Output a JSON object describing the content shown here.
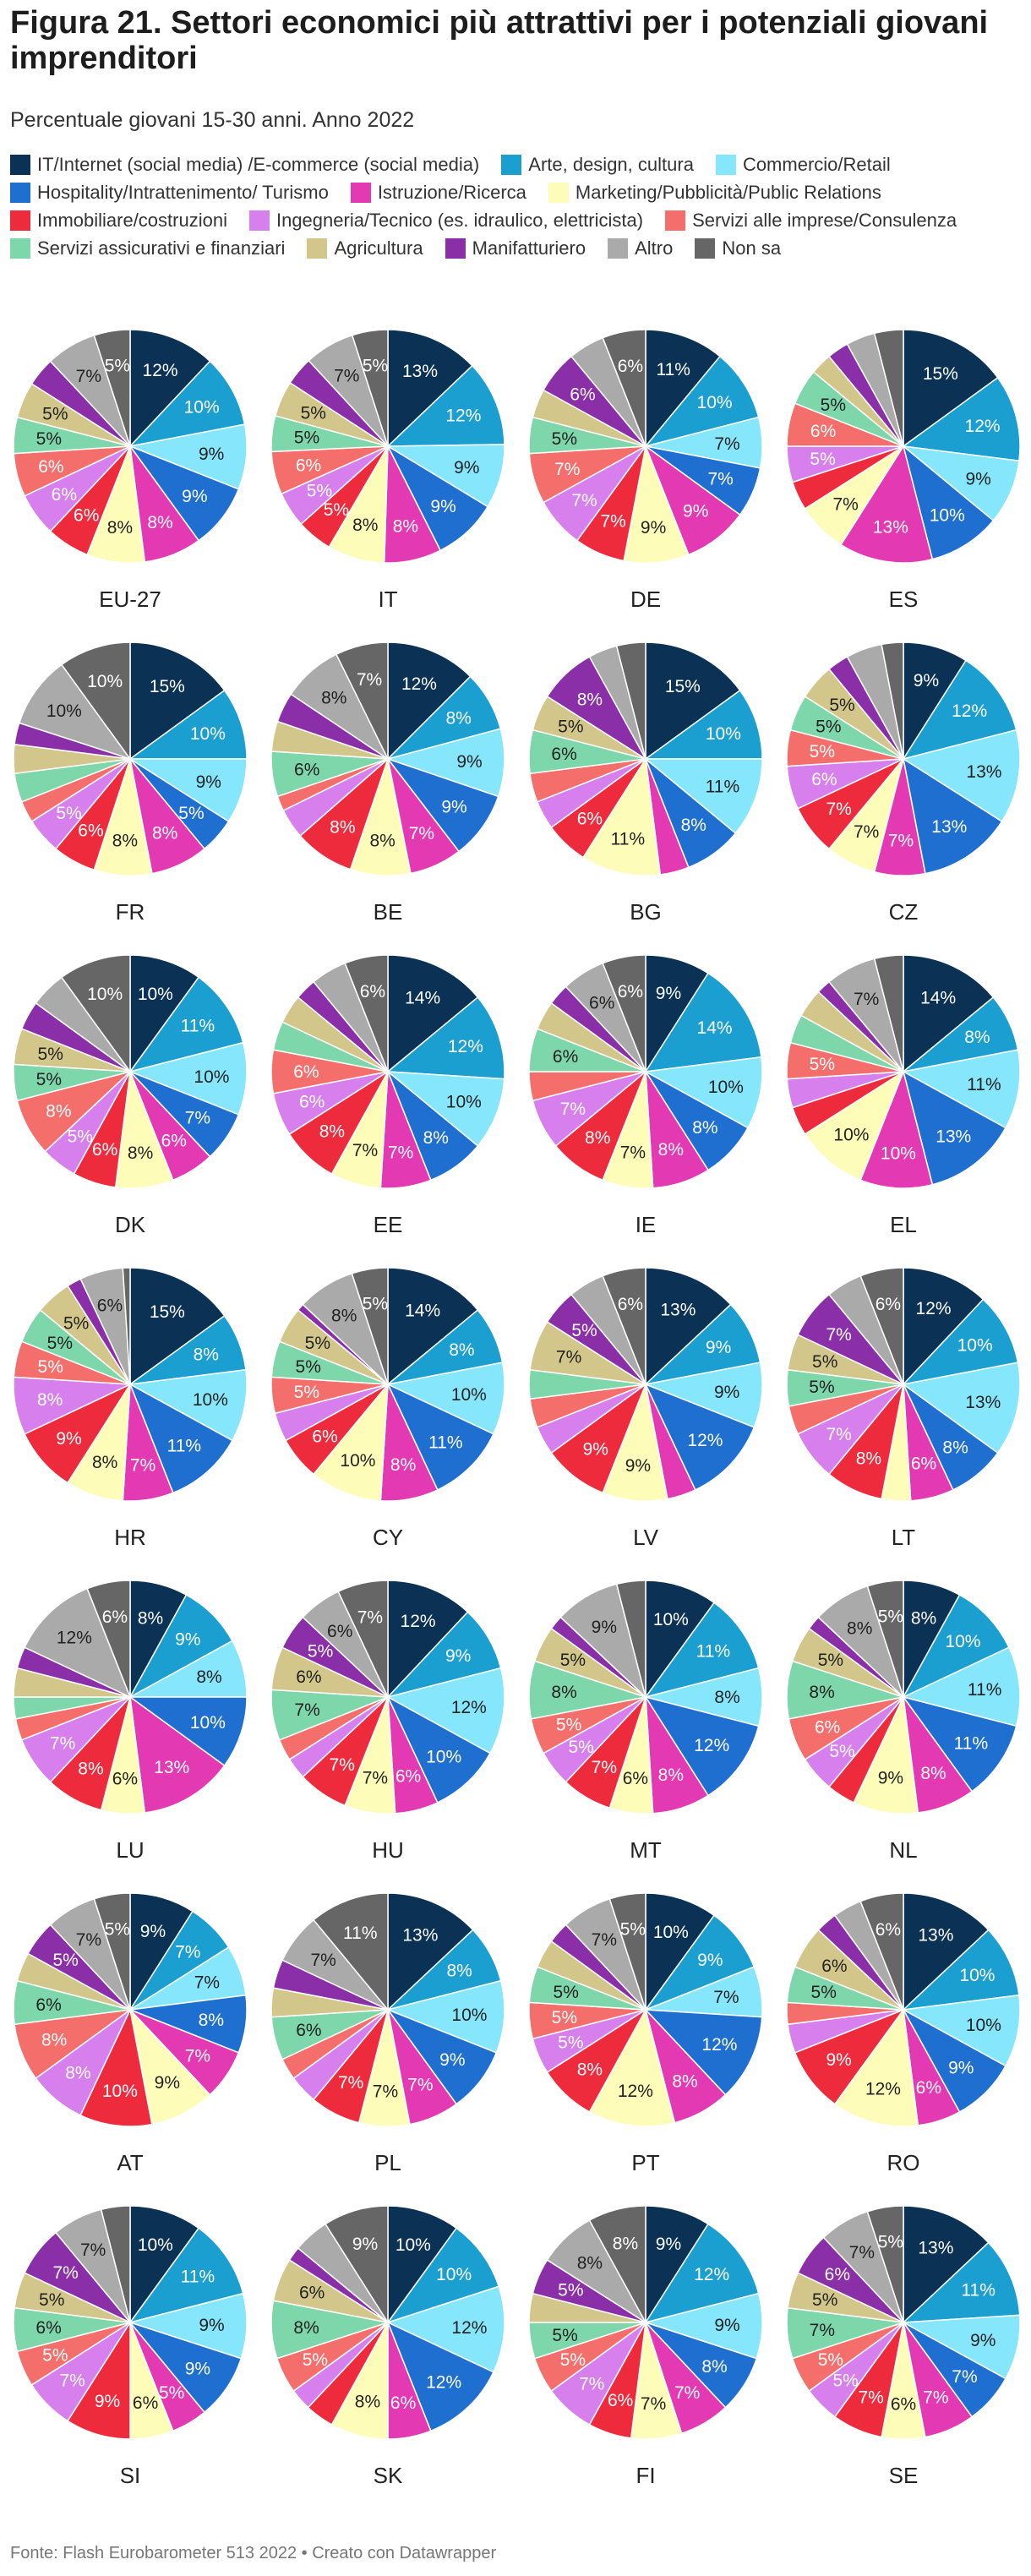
{
  "title": "Figura 21. Settori economici più attrattivi per i potenziali giovani imprenditori",
  "subtitle": "Percentuale giovani 15-30 anni. Anno 2022",
  "footer": "Fonte: Flash Eurobarometer 513 2022  • Creato con Datawrapper",
  "legend": [
    {
      "label": "IT/Internet (social media) /E-commerce (social media)",
      "color": "#0b3154"
    },
    {
      "label": "Arte, design, cultura",
      "color": "#1b9fd1"
    },
    {
      "label": "Commercio/Retail",
      "color": "#86e6fb"
    },
    {
      "label": "Hospitality/Intrattenimento/ Turismo",
      "color": "#1f6fd1"
    },
    {
      "label": "Istruzione/Ricerca",
      "color": "#e33ab4"
    },
    {
      "label": "Marketing/Pubblicità/Public Relations",
      "color": "#fefcb9"
    },
    {
      "label": "Immobiliare/costruzioni",
      "color": "#ee2a3d"
    },
    {
      "label": "Ingegneria/Tecnico (es. idraulico, elettricista)",
      "color": "#d780ed"
    },
    {
      "label": "Servizi alle imprese/Consulenza",
      "color": "#f46f6b"
    },
    {
      "label": "Servizi assicurativi e finanziari",
      "color": "#7ed6ab"
    },
    {
      "label": "Agricultura",
      "color": "#d3c68a"
    },
    {
      "label": "Manifatturiero",
      "color": "#8a2fa7"
    },
    {
      "label": "Altro",
      "color": "#aaaaaa"
    },
    {
      "label": "Non sa",
      "color": "#666666"
    }
  ],
  "chart_data": {
    "type": "pie",
    "title": "Figura 21. Settori economici più attrattivi per i potenziali giovani imprenditori",
    "subtitle": "Percentuale giovani 15-30 anni. Anno 2022",
    "unit": "%",
    "categories": [
      "IT/Internet (social media) /E-commerce (social media)",
      "Arte, design, cultura",
      "Commercio/Retail",
      "Hospitality/Intrattenimento/ Turismo",
      "Istruzione/Ricerca",
      "Marketing/Pubblicità/Public Relations",
      "Immobiliare/costruzioni",
      "Ingegneria/Tecnico (es. idraulico, elettricista)",
      "Servizi alle imprese/Consulenza",
      "Servizi assicurativi e finanziari",
      "Agricultura",
      "Manifatturiero",
      "Altro",
      "Non sa"
    ],
    "colors": [
      "#0b3154",
      "#1b9fd1",
      "#86e6fb",
      "#1f6fd1",
      "#e33ab4",
      "#fefcb9",
      "#ee2a3d",
      "#d780ed",
      "#f46f6b",
      "#7ed6ab",
      "#d3c68a",
      "#8a2fa7",
      "#aaaaaa",
      "#666666"
    ],
    "series": [
      {
        "name": "EU-27",
        "values": [
          12,
          10,
          9,
          9,
          8,
          8,
          6,
          6,
          6,
          5,
          5,
          4,
          7,
          5
        ]
      },
      {
        "name": "IT",
        "values": [
          13,
          12,
          9,
          9,
          8,
          8,
          5,
          5,
          6,
          5,
          5,
          4,
          7,
          5
        ]
      },
      {
        "name": "DE",
        "values": [
          11,
          10,
          7,
          7,
          9,
          9,
          7,
          7,
          7,
          5,
          4,
          6,
          5,
          6
        ]
      },
      {
        "name": "ES",
        "values": [
          15,
          12,
          9,
          10,
          13,
          7,
          4,
          5,
          6,
          5,
          3,
          3,
          4,
          4
        ]
      },
      {
        "name": "FR",
        "values": [
          15,
          10,
          9,
          5,
          8,
          8,
          6,
          5,
          3,
          4,
          4,
          3,
          10,
          10
        ]
      },
      {
        "name": "BE",
        "values": [
          12,
          8,
          9,
          9,
          7,
          8,
          8,
          4,
          2,
          6,
          4,
          4,
          8,
          7
        ]
      },
      {
        "name": "BG",
        "values": [
          15,
          10,
          11,
          8,
          4,
          11,
          6,
          4,
          4,
          6,
          5,
          8,
          4,
          4
        ]
      },
      {
        "name": "CZ",
        "values": [
          9,
          12,
          13,
          13,
          7,
          7,
          7,
          6,
          5,
          5,
          5,
          3,
          5,
          3
        ]
      },
      {
        "name": "DK",
        "values": [
          10,
          11,
          10,
          7,
          6,
          8,
          6,
          5,
          8,
          5,
          5,
          4,
          5,
          10
        ]
      },
      {
        "name": "EE",
        "values": [
          14,
          12,
          10,
          8,
          7,
          7,
          8,
          6,
          6,
          4,
          4,
          3,
          5,
          6
        ]
      },
      {
        "name": "IE",
        "values": [
          9,
          14,
          10,
          8,
          8,
          7,
          8,
          7,
          4,
          6,
          4,
          3,
          6,
          6
        ]
      },
      {
        "name": "EL",
        "values": [
          14,
          8,
          11,
          13,
          10,
          10,
          4,
          4,
          5,
          4,
          4,
          2,
          7,
          4
        ]
      },
      {
        "name": "HR",
        "values": [
          15,
          8,
          10,
          11,
          7,
          8,
          9,
          8,
          5,
          5,
          5,
          2,
          6,
          1
        ]
      },
      {
        "name": "CY",
        "values": [
          14,
          8,
          10,
          11,
          8,
          10,
          6,
          4,
          5,
          5,
          5,
          1,
          8,
          5
        ]
      },
      {
        "name": "LV",
        "values": [
          13,
          9,
          9,
          12,
          4,
          9,
          9,
          4,
          4,
          4,
          7,
          5,
          5,
          6
        ]
      },
      {
        "name": "LT",
        "values": [
          12,
          10,
          13,
          8,
          6,
          4,
          8,
          7,
          4,
          5,
          5,
          7,
          5,
          6
        ]
      },
      {
        "name": "LU",
        "values": [
          8,
          9,
          8,
          10,
          13,
          6,
          8,
          7,
          3,
          3,
          4,
          3,
          12,
          6
        ]
      },
      {
        "name": "HU",
        "values": [
          12,
          9,
          12,
          10,
          6,
          7,
          7,
          3,
          3,
          7,
          6,
          5,
          6,
          7
        ]
      },
      {
        "name": "MT",
        "values": [
          10,
          11,
          8,
          12,
          8,
          6,
          7,
          5,
          5,
          8,
          5,
          2,
          9,
          4
        ]
      },
      {
        "name": "NL",
        "values": [
          8,
          10,
          11,
          11,
          8,
          9,
          4,
          5,
          6,
          8,
          5,
          2,
          8,
          5
        ]
      },
      {
        "name": "AT",
        "values": [
          9,
          7,
          7,
          8,
          7,
          9,
          10,
          8,
          8,
          6,
          4,
          5,
          7,
          5
        ]
      },
      {
        "name": "PL",
        "values": [
          13,
          8,
          10,
          9,
          7,
          7,
          7,
          4,
          3,
          6,
          4,
          4,
          7,
          11
        ]
      },
      {
        "name": "PT",
        "values": [
          10,
          9,
          7,
          12,
          8,
          12,
          8,
          5,
          5,
          5,
          4,
          3,
          7,
          5
        ]
      },
      {
        "name": "RO",
        "values": [
          13,
          10,
          10,
          9,
          6,
          12,
          9,
          4,
          3,
          5,
          6,
          3,
          4,
          6
        ]
      },
      {
        "name": "SI",
        "values": [
          10,
          11,
          9,
          9,
          5,
          6,
          9,
          7,
          5,
          6,
          5,
          7,
          7,
          4
        ]
      },
      {
        "name": "SK",
        "values": [
          10,
          10,
          12,
          12,
          6,
          8,
          4,
          3,
          5,
          8,
          6,
          2,
          5,
          9
        ]
      },
      {
        "name": "FI",
        "values": [
          9,
          12,
          9,
          8,
          7,
          7,
          6,
          7,
          5,
          5,
          4,
          5,
          8,
          8
        ]
      },
      {
        "name": "SE",
        "values": [
          13,
          11,
          9,
          7,
          7,
          6,
          7,
          5,
          5,
          7,
          5,
          6,
          7,
          5
        ]
      }
    ]
  }
}
